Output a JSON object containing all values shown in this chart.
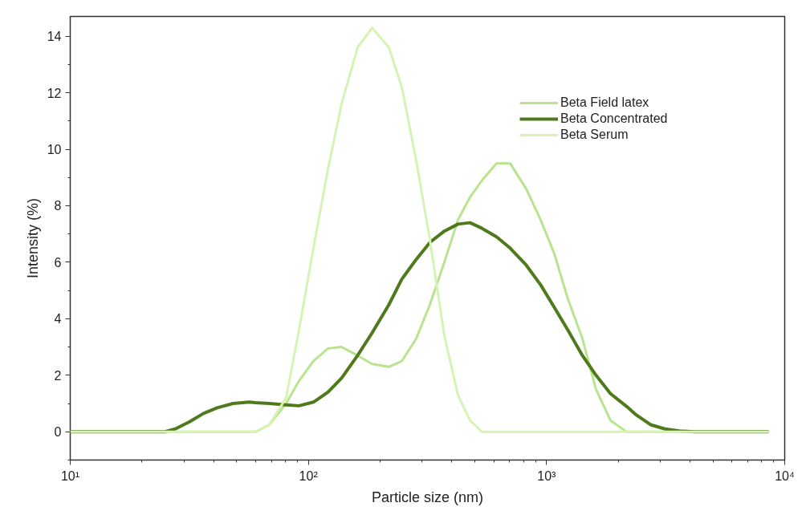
{
  "chart_data": {
    "type": "line",
    "xlabel": "Particle size (nm)",
    "ylabel": "Intensity (%)",
    "x": [
      10,
      25.0,
      27.6,
      31.6,
      36.3,
      41.4,
      48.3,
      56.4,
      60.1,
      68.5,
      80.6,
      91.3,
      105.0,
      120.8,
      137.8,
      160.9,
      185.1,
      217.8,
      246.6,
      283.6,
      323.6,
      372.1,
      424.6,
      476.9,
      535.8,
      616.4,
      703.1,
      821.0,
      944.4,
      1078,
      1229,
      1414,
      1613,
      1855,
      2166,
      2377,
      2734,
      3144,
      3615,
      4190,
      8555
    ],
    "series": [
      {
        "name": "Beta Field latex",
        "color": "#b9e48e",
        "values": [
          0,
          0,
          0,
          0,
          0,
          0,
          0,
          0,
          0,
          0.25,
          1.0,
          1.8,
          2.5,
          2.95,
          3.0,
          2.7,
          2.4,
          2.3,
          2.5,
          3.3,
          4.5,
          6.0,
          7.5,
          8.3,
          8.9,
          9.5,
          9.5,
          8.6,
          7.5,
          6.3,
          4.7,
          3.3,
          1.5,
          0.4,
          0,
          0,
          0,
          0,
          0,
          0,
          0
        ]
      },
      {
        "name": "Beta Concentrated",
        "color": "#4e7a1c",
        "values": [
          0,
          0,
          0.1,
          0.35,
          0.65,
          0.85,
          1.0,
          1.05,
          1.03,
          1.0,
          0.95,
          0.92,
          1.05,
          1.4,
          1.9,
          2.7,
          3.5,
          4.5,
          5.4,
          6.1,
          6.7,
          7.1,
          7.35,
          7.4,
          7.2,
          6.9,
          6.5,
          5.9,
          5.2,
          4.4,
          3.6,
          2.7,
          2.0,
          1.35,
          0.9,
          0.6,
          0.25,
          0.1,
          0.03,
          0,
          0
        ]
      },
      {
        "name": "Beta Serum",
        "color": "#d6f3b4",
        "values": [
          0,
          0,
          0,
          0,
          0,
          0,
          0,
          0,
          0,
          0.25,
          1.2,
          3.6,
          6.5,
          9.3,
          11.6,
          13.6,
          14.3,
          13.6,
          12.2,
          9.6,
          6.8,
          3.4,
          1.3,
          0.4,
          0,
          0,
          0,
          0,
          0,
          0,
          0,
          0,
          0,
          0,
          0,
          0,
          0,
          0,
          0,
          0,
          0
        ]
      }
    ],
    "log": "x",
    "xlim": [
      10,
      10000
    ],
    "xticks": [
      {
        "value": 10,
        "label": "10¹"
      },
      {
        "value": 100,
        "label": "10²"
      },
      {
        "value": 1000,
        "label": "10³"
      },
      {
        "value": 10000,
        "label": "10⁴"
      }
    ],
    "ylim": [
      -1,
      14.7
    ],
    "yticks": [
      0,
      2,
      4,
      6,
      8,
      10,
      12,
      14
    ],
    "grid": false,
    "legend": "top right",
    "marker": "none",
    "line_style": "solid"
  }
}
